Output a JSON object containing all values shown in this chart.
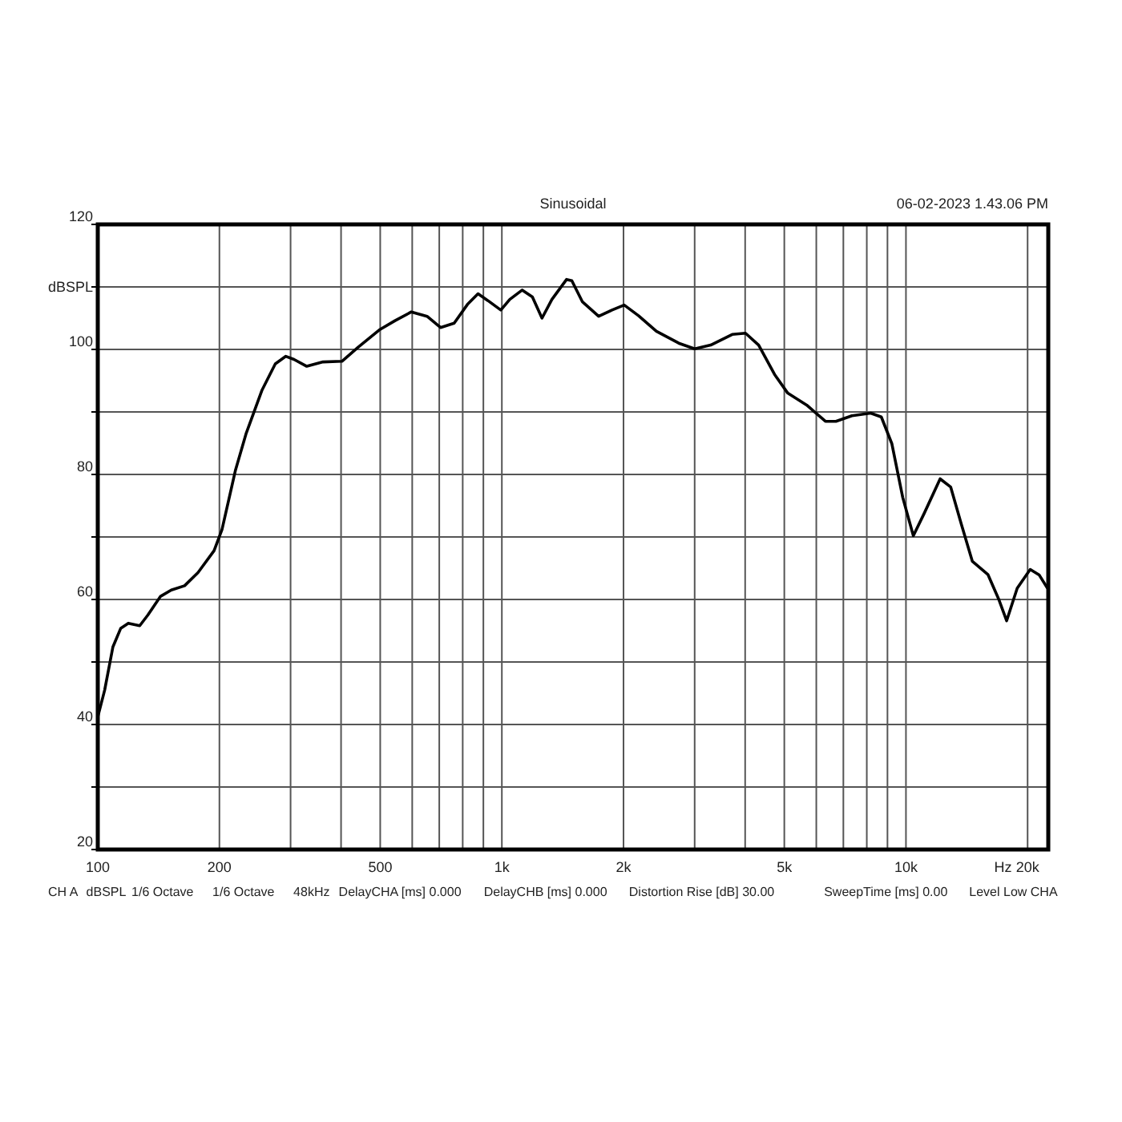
{
  "chart_data": {
    "type": "line",
    "title": "Sinusoidal",
    "xlabel": "Hz",
    "ylabel": "dBSPL",
    "log": "x",
    "grid": true,
    "marker": "none",
    "line_style": "solid",
    "annotations": [
      "06-02-2023 1.43.06 PM",
      "CH A",
      "dBSPL",
      "1/6 Octave",
      "1/6 Octave",
      "48kHz",
      "DelayCHA [ms] 0.000",
      "DelayCHB [ms] 0.000",
      "Distortion Rise [dB] 30.00",
      "SweepTime [ms] 0.00",
      "Level Low CHA"
    ],
    "xlim": [
      100,
      22500
    ],
    "ylim": [
      20,
      120
    ],
    "xticks": [
      100,
      200,
      {
        "value": 300,
        "label": null
      },
      {
        "value": 400,
        "label": null
      },
      500,
      {
        "value": 600,
        "label": null
      },
      {
        "value": 700,
        "label": null
      },
      {
        "value": 800,
        "label": null
      },
      {
        "value": 900,
        "label": null
      },
      {
        "value": 1000,
        "label": "1k"
      },
      {
        "value": 2000,
        "label": "2k"
      },
      {
        "value": 3000,
        "label": null
      },
      {
        "value": 4000,
        "label": null
      },
      {
        "value": 5000,
        "label": "5k"
      },
      {
        "value": 6000,
        "label": null
      },
      {
        "value": 7000,
        "label": null
      },
      {
        "value": 8000,
        "label": null
      },
      {
        "value": 9000,
        "label": null
      },
      {
        "value": 10000,
        "label": "10k"
      },
      {
        "value": 20000,
        "label": "20k"
      }
    ],
    "yticks": [
      20,
      {
        "value": 30,
        "label": null
      },
      40,
      {
        "value": 50,
        "label": null
      },
      60,
      {
        "value": 70,
        "label": null
      },
      80,
      {
        "value": 90,
        "label": null
      },
      100,
      {
        "value": 110,
        "label": null
      },
      120
    ],
    "series": [
      {
        "color": "#000000",
        "x": [
          100,
          104,
          109,
          114,
          119,
          127,
          133,
          143,
          152,
          164,
          177,
          194,
          203,
          219,
          233,
          255,
          275,
          292,
          306,
          329,
          361,
          402,
          440,
          497,
          544,
          597,
          653,
          705,
          762,
          822,
          873,
          924,
          994,
          1046,
          1123,
          1190,
          1257,
          1330,
          1446,
          1490,
          1583,
          1736,
          1873,
          2008,
          2178,
          2413,
          2740,
          3000,
          3287,
          3715,
          4008,
          4320,
          4730,
          5100,
          5680,
          6320,
          6710,
          7350,
          8180,
          8690,
          9230,
          9820,
          10430,
          11100,
          12150,
          12900,
          13700,
          14600,
          15950,
          16950,
          17750,
          18850,
          20300,
          21380,
          22400
        ],
        "values": [
          41.2,
          45.5,
          52.4,
          55.4,
          56.2,
          55.8,
          57.5,
          60.5,
          61.5,
          62.2,
          64.3,
          67.8,
          71.2,
          80.6,
          86.6,
          93.5,
          97.7,
          98.9,
          98.4,
          97.3,
          98.0,
          98.1,
          100.3,
          103.1,
          104.6,
          106.0,
          105.3,
          103.5,
          104.2,
          107.2,
          108.9,
          107.8,
          106.3,
          108.0,
          109.5,
          108.4,
          105.0,
          108.0,
          111.2,
          111.0,
          107.6,
          105.3,
          106.3,
          107.1,
          105.4,
          102.9,
          101.0,
          100.1,
          100.7,
          102.4,
          102.6,
          100.7,
          96.0,
          93.0,
          91.1,
          88.5,
          88.5,
          89.4,
          89.8,
          89.2,
          84.9,
          76.3,
          70.2,
          73.8,
          79.3,
          78.0,
          72.1,
          66.1,
          64.0,
          60.1,
          56.6,
          61.8,
          64.8,
          63.9,
          61.8
        ]
      }
    ]
  }
}
